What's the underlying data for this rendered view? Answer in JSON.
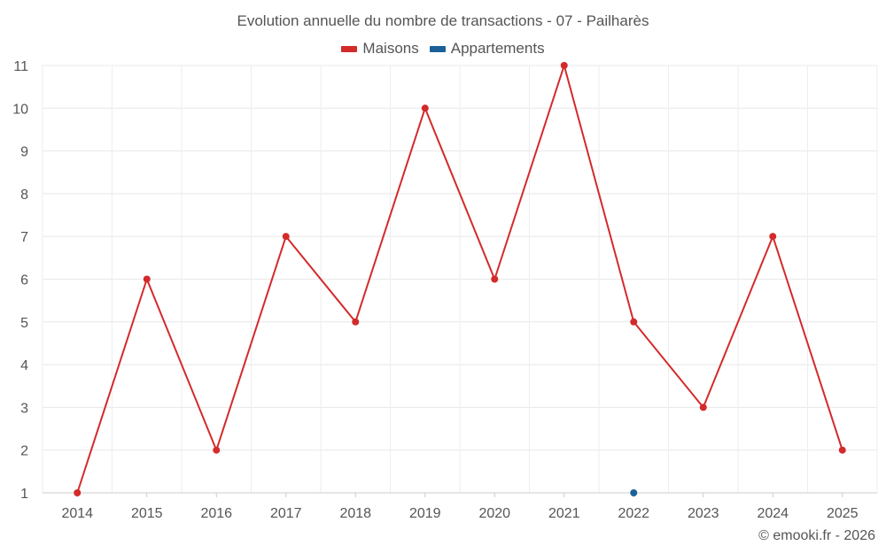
{
  "chart_data": {
    "type": "line",
    "title": "Evolution annuelle du nombre de transactions - 07 - Pailharès",
    "categories": [
      "2014",
      "2015",
      "2016",
      "2017",
      "2018",
      "2019",
      "2020",
      "2021",
      "2022",
      "2023",
      "2024",
      "2025"
    ],
    "series": [
      {
        "name": "Maisons",
        "color": "#d42a2a",
        "values": [
          1,
          6,
          2,
          7,
          5,
          10,
          6,
          11,
          5,
          3,
          7,
          2
        ]
      },
      {
        "name": "Appartements",
        "color": "#1a6199",
        "values": [
          null,
          null,
          null,
          null,
          null,
          null,
          null,
          null,
          1,
          null,
          null,
          null
        ]
      }
    ],
    "xlabel": "",
    "ylabel": "",
    "ylim": [
      1,
      11
    ],
    "yticks": [
      1,
      2,
      3,
      4,
      5,
      6,
      7,
      8,
      9,
      10,
      11
    ],
    "grid": true,
    "legend_position": "top-center"
  },
  "footer": {
    "credit": "© emooki.fr - 2026"
  }
}
